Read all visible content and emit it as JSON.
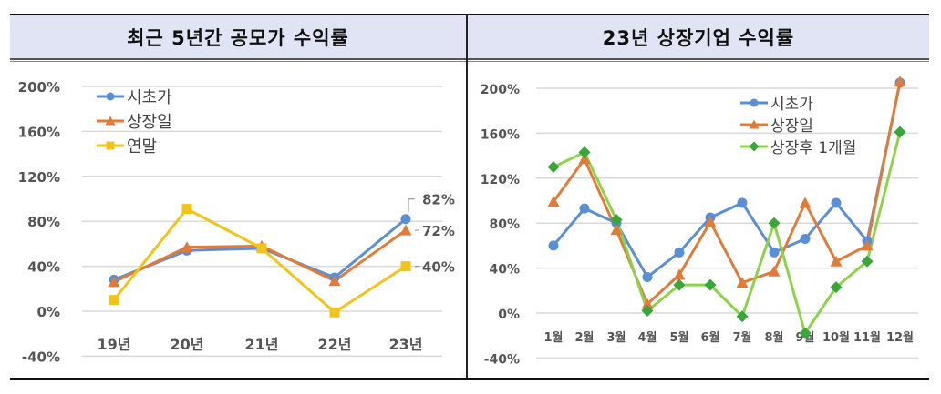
{
  "headers": {
    "left": "최근 5년간 공모가 수익률",
    "right": "23년 상장기업 수익률"
  },
  "colors": {
    "blue": "#5b8fd4",
    "orange": "#e07b39",
    "yellow": "#f0c419",
    "green": "#8cd34a",
    "green_marker": "#3aa53a",
    "grid": "#d9d9d9",
    "header_bg": "#e0e4f4"
  },
  "chart_data": [
    {
      "type": "line",
      "title": "최근 5년간 공모가 수익률",
      "categories": [
        "19년",
        "20년",
        "21년",
        "22년",
        "23년"
      ],
      "series": [
        {
          "name": "시초가",
          "marker": "circle",
          "values": [
            28,
            54,
            56,
            30,
            82
          ]
        },
        {
          "name": "상장일",
          "marker": "triangle",
          "values": [
            26,
            57,
            58,
            27,
            72
          ]
        },
        {
          "name": "연말",
          "marker": "square",
          "values": [
            10,
            91,
            56,
            -1,
            40
          ]
        }
      ],
      "data_labels": [
        {
          "series": "시초가",
          "category": "23년",
          "text": "82%"
        },
        {
          "series": "상장일",
          "category": "23년",
          "text": "72%"
        },
        {
          "series": "연말",
          "category": "23년",
          "text": "40%"
        }
      ],
      "ylim": [
        -40,
        200
      ],
      "yticks": [
        "200%",
        "160%",
        "120%",
        "80%",
        "40%",
        "0%",
        "-40%"
      ],
      "ytick_values": [
        200,
        160,
        120,
        80,
        40,
        0,
        -40
      ],
      "grid": true,
      "legend_position": "upper-left",
      "xlabel": "",
      "ylabel": ""
    },
    {
      "type": "line",
      "title": "23년 상장기업 수익률",
      "categories": [
        "1월",
        "2월",
        "3월",
        "4월",
        "5월",
        "6월",
        "7월",
        "8월",
        "9월",
        "10월",
        "11월",
        "12월"
      ],
      "series": [
        {
          "name": "시초가",
          "marker": "circle",
          "values": [
            60,
            93,
            80,
            32,
            54,
            85,
            98,
            54,
            66,
            98,
            64,
            205
          ]
        },
        {
          "name": "상장일",
          "marker": "triangle",
          "values": [
            99,
            137,
            74,
            8,
            34,
            81,
            27,
            37,
            98,
            46,
            60,
            206
          ]
        },
        {
          "name": "상장후 1개월",
          "marker": "diamond",
          "values": [
            130,
            143,
            83,
            2,
            25,
            25,
            -3,
            80,
            -18,
            23,
            46,
            161
          ]
        }
      ],
      "ylim": [
        -40,
        200
      ],
      "yticks": [
        "200%",
        "160%",
        "120%",
        "80%",
        "40%",
        "0%",
        "-40%"
      ],
      "ytick_values": [
        200,
        160,
        120,
        80,
        40,
        0,
        -40
      ],
      "grid": true,
      "legend_position": "upper-right",
      "xlabel": "",
      "ylabel": ""
    }
  ]
}
